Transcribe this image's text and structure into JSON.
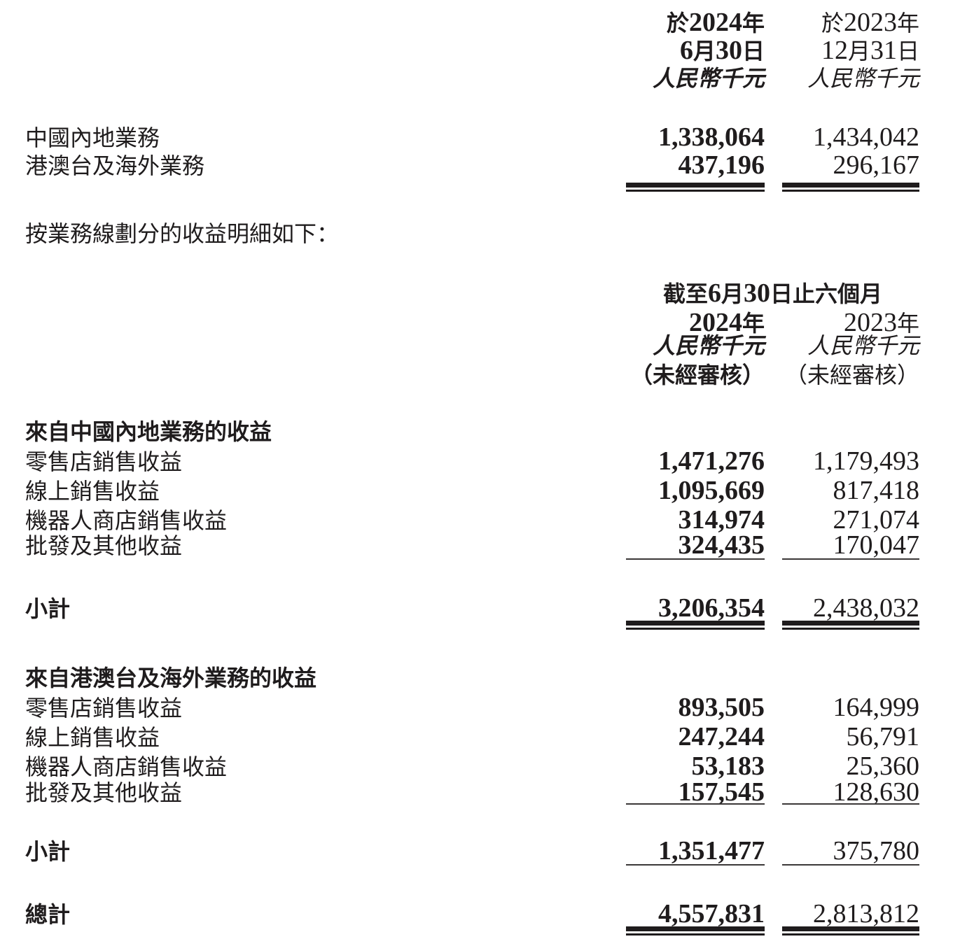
{
  "document": {
    "geo_table": {
      "header_2024": {
        "line1": "於2024年",
        "line2": "6月30日",
        "line3": "人民幣千元"
      },
      "header_2023": {
        "line1": "於2023年",
        "line2": "12月31日",
        "line3": "人民幣千元"
      },
      "rows": [
        {
          "label": "中國內地業務",
          "v2024": "1,338,064",
          "v2023": "1,434,042"
        },
        {
          "label": "港澳台及海外業務",
          "v2024": "437,196",
          "v2023": "296,167"
        }
      ]
    },
    "intro_text": "按業務線劃分的收益明細如下：",
    "business_line_table": {
      "period_header": "截至6月30日止六個月",
      "header_2024": {
        "year": "2024年",
        "currency": "人民幣千元",
        "audit": "（未經審核）"
      },
      "header_2023": {
        "year": "2023年",
        "currency": "人民幣千元",
        "audit": "（未經審核）"
      },
      "mainland_section": {
        "title": "來自中國內地業務的收益",
        "rows": [
          {
            "label": "零售店銷售收益",
            "v2024": "1,471,276",
            "v2023": "1,179,493"
          },
          {
            "label": "線上銷售收益",
            "v2024": "1,095,669",
            "v2023": "817,418"
          },
          {
            "label": "機器人商店銷售收益",
            "v2024": "314,974",
            "v2023": "271,074"
          },
          {
            "label": "批發及其他收益",
            "v2024": "324,435",
            "v2023": "170,047"
          }
        ],
        "subtotal": {
          "label": "小計",
          "v2024": "3,206,354",
          "v2023": "2,438,032"
        }
      },
      "overseas_section": {
        "title": "來自港澳台及海外業務的收益",
        "rows": [
          {
            "label": "零售店銷售收益",
            "v2024": "893,505",
            "v2023": "164,999"
          },
          {
            "label": "線上銷售收益",
            "v2024": "247,244",
            "v2023": "56,791"
          },
          {
            "label": "機器人商店銷售收益",
            "v2024": "53,183",
            "v2023": "25,360"
          },
          {
            "label": "批發及其他收益",
            "v2024": "157,545",
            "v2023": "128,630"
          }
        ],
        "subtotal": {
          "label": "小計",
          "v2024": "1,351,477",
          "v2023": "375,780"
        }
      },
      "total": {
        "label": "總計",
        "v2024": "4,557,831",
        "v2023": "2,813,812"
      }
    }
  }
}
